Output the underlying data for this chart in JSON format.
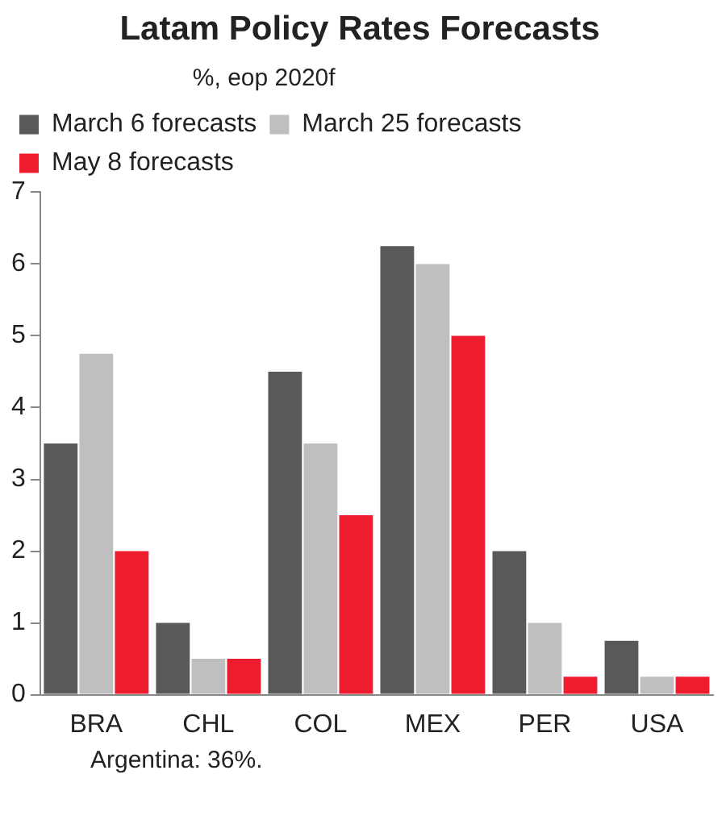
{
  "chart_data": {
    "type": "bar",
    "title": "Latam Policy Rates Forecasts",
    "legend_title": "%, eop 2020f",
    "categories": [
      "BRA",
      "CHL",
      "COL",
      "MEX",
      "PER",
      "USA"
    ],
    "series": [
      {
        "name": "March 6 forecasts",
        "color": "#58595b",
        "values": [
          3.5,
          1,
          4.5,
          6.25,
          2,
          0.75
        ]
      },
      {
        "name": "March 25 forecasts",
        "color": "#bfbfbf",
        "values": [
          4.75,
          0.5,
          3.5,
          6,
          1,
          0.25
        ]
      },
      {
        "name": "May 8 forecasts",
        "color": "#ed1c2e",
        "values": [
          2,
          0.5,
          2.5,
          5,
          0.25,
          0.25
        ]
      }
    ],
    "ylim": [
      0,
      7
    ],
    "yticks": [
      0,
      1,
      2,
      3,
      4,
      5,
      6,
      7
    ],
    "grid": false,
    "legend": "top left",
    "annotations": [
      "Argentina: 36%."
    ]
  }
}
